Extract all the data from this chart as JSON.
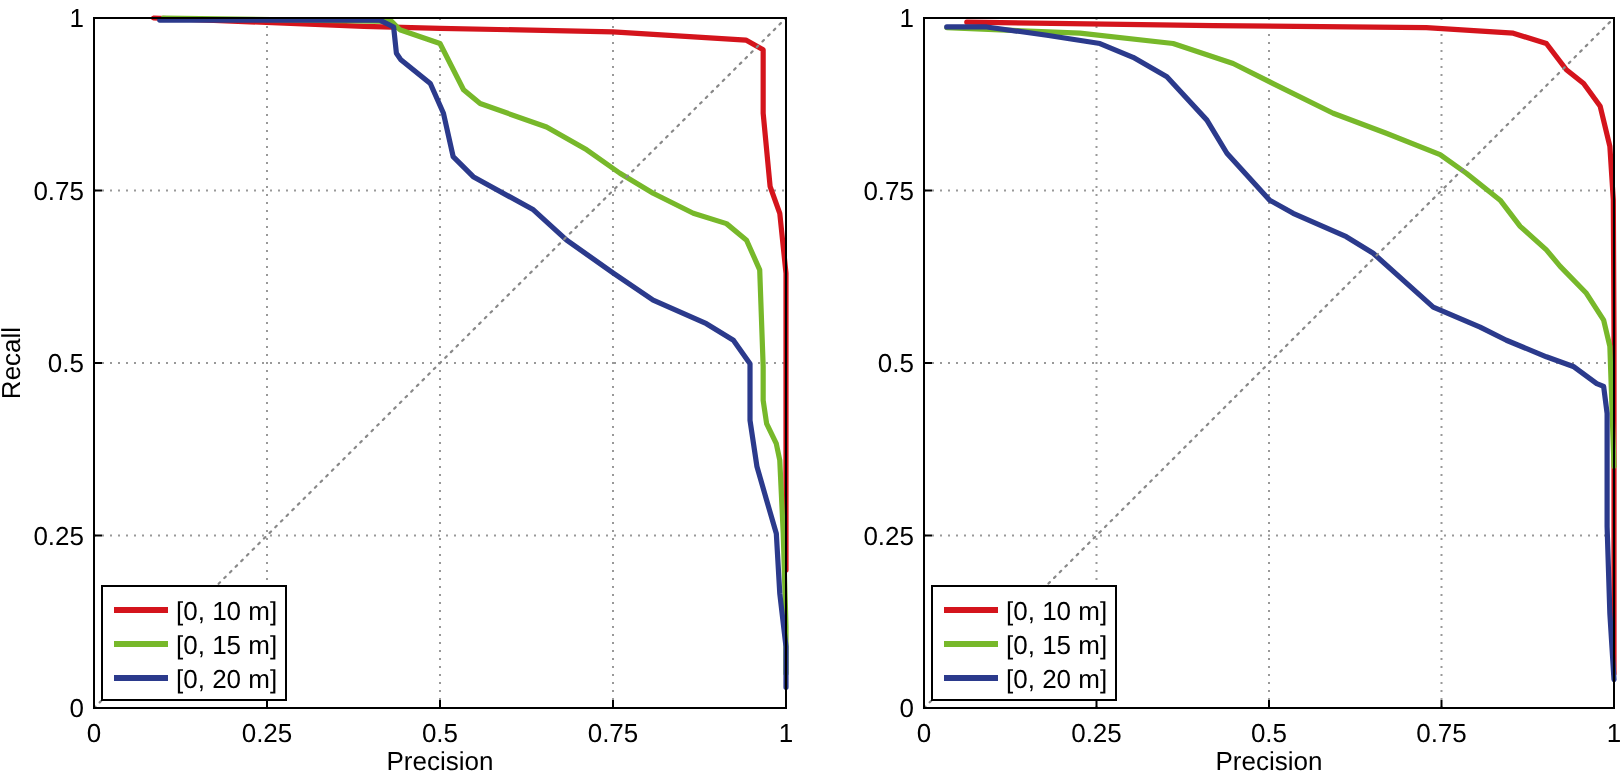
{
  "chart_data": [
    {
      "type": "line",
      "xlabel": "Precision",
      "ylabel": "Recall",
      "xlim": [
        0,
        1
      ],
      "ylim": [
        0,
        1
      ],
      "xticks": [
        0,
        0.25,
        0.5,
        0.75,
        1
      ],
      "yticks": [
        0,
        0.25,
        0.5,
        0.75,
        1
      ],
      "grid": true,
      "legend": "bottom left",
      "line_style": "solid",
      "series": [
        {
          "name": "[0, 10 m]",
          "color": "#d4141c",
          "x": [
            0.086,
            0.39,
            0.5,
            0.75,
            0.942,
            0.967,
            0.967,
            0.977,
            0.991,
            1.0,
            1.0
          ],
          "values": [
            1.0,
            0.988,
            0.985,
            0.98,
            0.968,
            0.954,
            0.862,
            0.756,
            0.717,
            0.63,
            0.2
          ]
        },
        {
          "name": "[0, 15 m]",
          "color": "#77b82a",
          "x": [
            0.1,
            0.43,
            0.442,
            0.5,
            0.534,
            0.558,
            0.654,
            0.712,
            0.76,
            0.808,
            0.866,
            0.914,
            0.943,
            0.962,
            0.967,
            0.967,
            0.972,
            0.986,
            0.991,
            0.996,
            1.0,
            1.0
          ],
          "values": [
            1.0,
            0.995,
            0.983,
            0.963,
            0.896,
            0.876,
            0.842,
            0.809,
            0.775,
            0.746,
            0.717,
            0.702,
            0.678,
            0.635,
            0.495,
            0.446,
            0.412,
            0.383,
            0.359,
            0.253,
            0.118,
            0.05
          ]
        },
        {
          "name": "[0, 20 m]",
          "color": "#2b3a8c",
          "x": [
            0.095,
            0.413,
            0.433,
            0.437,
            0.443,
            0.486,
            0.505,
            0.519,
            0.548,
            0.635,
            0.683,
            0.751,
            0.808,
            0.885,
            0.924,
            0.948,
            0.948,
            0.958,
            0.972,
            0.986,
            0.991,
            1.0,
            1.0
          ],
          "values": [
            0.997,
            0.997,
            0.987,
            0.949,
            0.94,
            0.905,
            0.862,
            0.799,
            0.77,
            0.722,
            0.678,
            0.63,
            0.591,
            0.557,
            0.533,
            0.499,
            0.417,
            0.35,
            0.301,
            0.253,
            0.166,
            0.089,
            0.03
          ]
        },
        {
          "color": "#888888",
          "line_style": "dotted",
          "x": [
            0,
            1
          ],
          "values": [
            0,
            1
          ]
        }
      ]
    },
    {
      "type": "line",
      "xlabel": "Precision",
      "xlim": [
        0,
        1
      ],
      "ylim": [
        0,
        1
      ],
      "xticks": [
        0,
        0.25,
        0.5,
        0.75,
        1
      ],
      "yticks": [
        0,
        0.25,
        0.5,
        0.75,
        1
      ],
      "grid": true,
      "legend": "bottom left",
      "line_style": "solid",
      "series": [
        {
          "name": "[0, 10 m]",
          "color": "#d4141c",
          "x": [
            0.062,
            0.419,
            0.728,
            0.854,
            0.902,
            0.931,
            0.956,
            0.98,
            0.994,
            0.999,
            1.0,
            1.0
          ],
          "values": [
            0.994,
            0.989,
            0.986,
            0.978,
            0.963,
            0.925,
            0.905,
            0.872,
            0.814,
            0.736,
            0.543,
            0.05
          ]
        },
        {
          "name": "[0, 15 m]",
          "color": "#77b82a",
          "x": [
            0.033,
            0.226,
            0.361,
            0.448,
            0.506,
            0.593,
            0.67,
            0.748,
            0.786,
            0.835,
            0.864,
            0.902,
            0.922,
            0.96,
            0.985,
            0.994,
            1.0
          ],
          "values": [
            0.986,
            0.978,
            0.963,
            0.934,
            0.905,
            0.862,
            0.833,
            0.802,
            0.775,
            0.736,
            0.698,
            0.664,
            0.64,
            0.601,
            0.562,
            0.524,
            0.35
          ]
        },
        {
          "name": "[0, 20 m]",
          "color": "#2b3a8c",
          "x": [
            0.033,
            0.091,
            0.178,
            0.255,
            0.303,
            0.352,
            0.41,
            0.439,
            0.501,
            0.535,
            0.612,
            0.651,
            0.738,
            0.806,
            0.844,
            0.902,
            0.941,
            0.975,
            0.985,
            0.99,
            0.99,
            0.994,
            1.0
          ],
          "values": [
            0.987,
            0.987,
            0.975,
            0.963,
            0.943,
            0.915,
            0.852,
            0.804,
            0.736,
            0.717,
            0.683,
            0.659,
            0.581,
            0.552,
            0.533,
            0.509,
            0.495,
            0.47,
            0.466,
            0.427,
            0.263,
            0.137,
            0.041
          ]
        },
        {
          "color": "#888888",
          "line_style": "dotted",
          "x": [
            0,
            1
          ],
          "values": [
            0,
            1
          ]
        }
      ]
    }
  ]
}
